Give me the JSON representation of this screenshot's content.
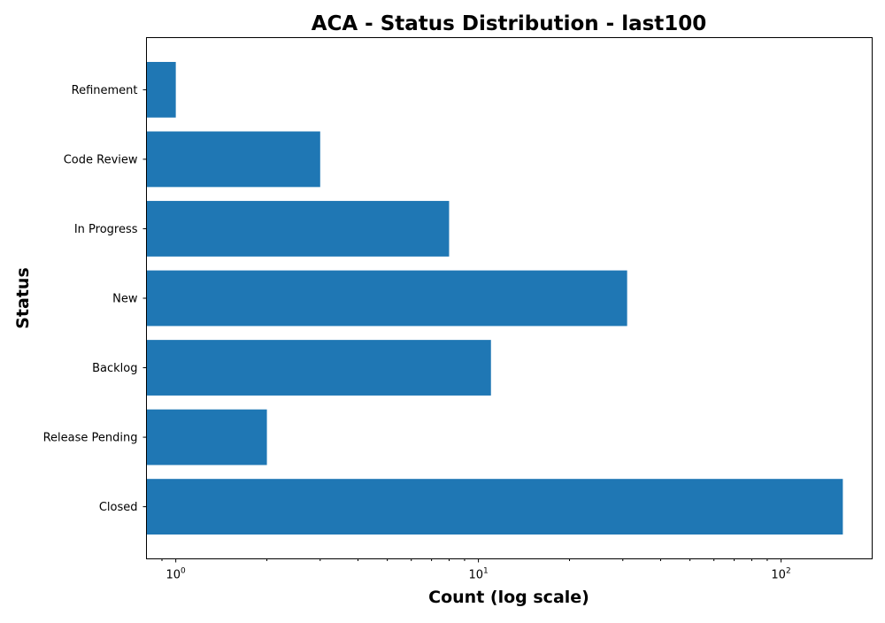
{
  "chart_data": {
    "type": "bar",
    "orientation": "horizontal",
    "title": "ACA - Status Distribution - last100",
    "xlabel": "Count (log scale)",
    "ylabel": "Status",
    "xscale": "log",
    "xlim": [
      0.8,
      200
    ],
    "xticks": [
      {
        "base": "10",
        "exp": "0",
        "value": 1
      },
      {
        "base": "10",
        "exp": "1",
        "value": 10
      },
      {
        "base": "10",
        "exp": "2",
        "value": 100
      }
    ],
    "categories": [
      "Refinement",
      "Code Review",
      "In Progress",
      "New",
      "Backlog",
      "Release Pending",
      "Closed"
    ],
    "values": [
      1,
      3,
      8,
      31,
      11,
      2,
      160
    ],
    "color": "#1f77b4",
    "grid": false,
    "legend": "none"
  }
}
